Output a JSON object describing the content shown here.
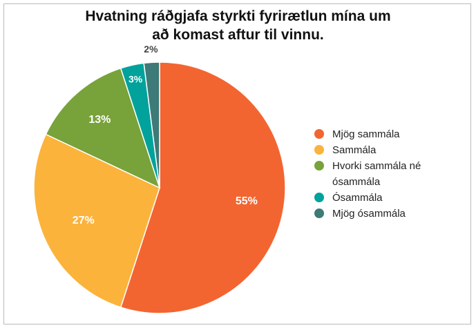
{
  "chart_data": {
    "type": "pie",
    "title_lines": [
      "Hvatning ráðgjafa styrkti fyrirætlun mína um",
      "að komast aftur til vinnu."
    ],
    "slices": [
      {
        "label": "Mjög sammála",
        "value": 55,
        "display": "55%",
        "color": "#f26531"
      },
      {
        "label": "Sammála",
        "value": 27,
        "display": "27%",
        "color": "#fbb33b"
      },
      {
        "label": "Hvorki sammála né ósammála",
        "value": 13,
        "display": "13%",
        "color": "#78a23a"
      },
      {
        "label": "Ósammála",
        "value": 3,
        "display": "3%",
        "color": "#00a29b"
      },
      {
        "label": "Mjög ósammála",
        "value": 2,
        "display": "2%",
        "color": "#3d7a78"
      }
    ],
    "legend_position": "right"
  }
}
